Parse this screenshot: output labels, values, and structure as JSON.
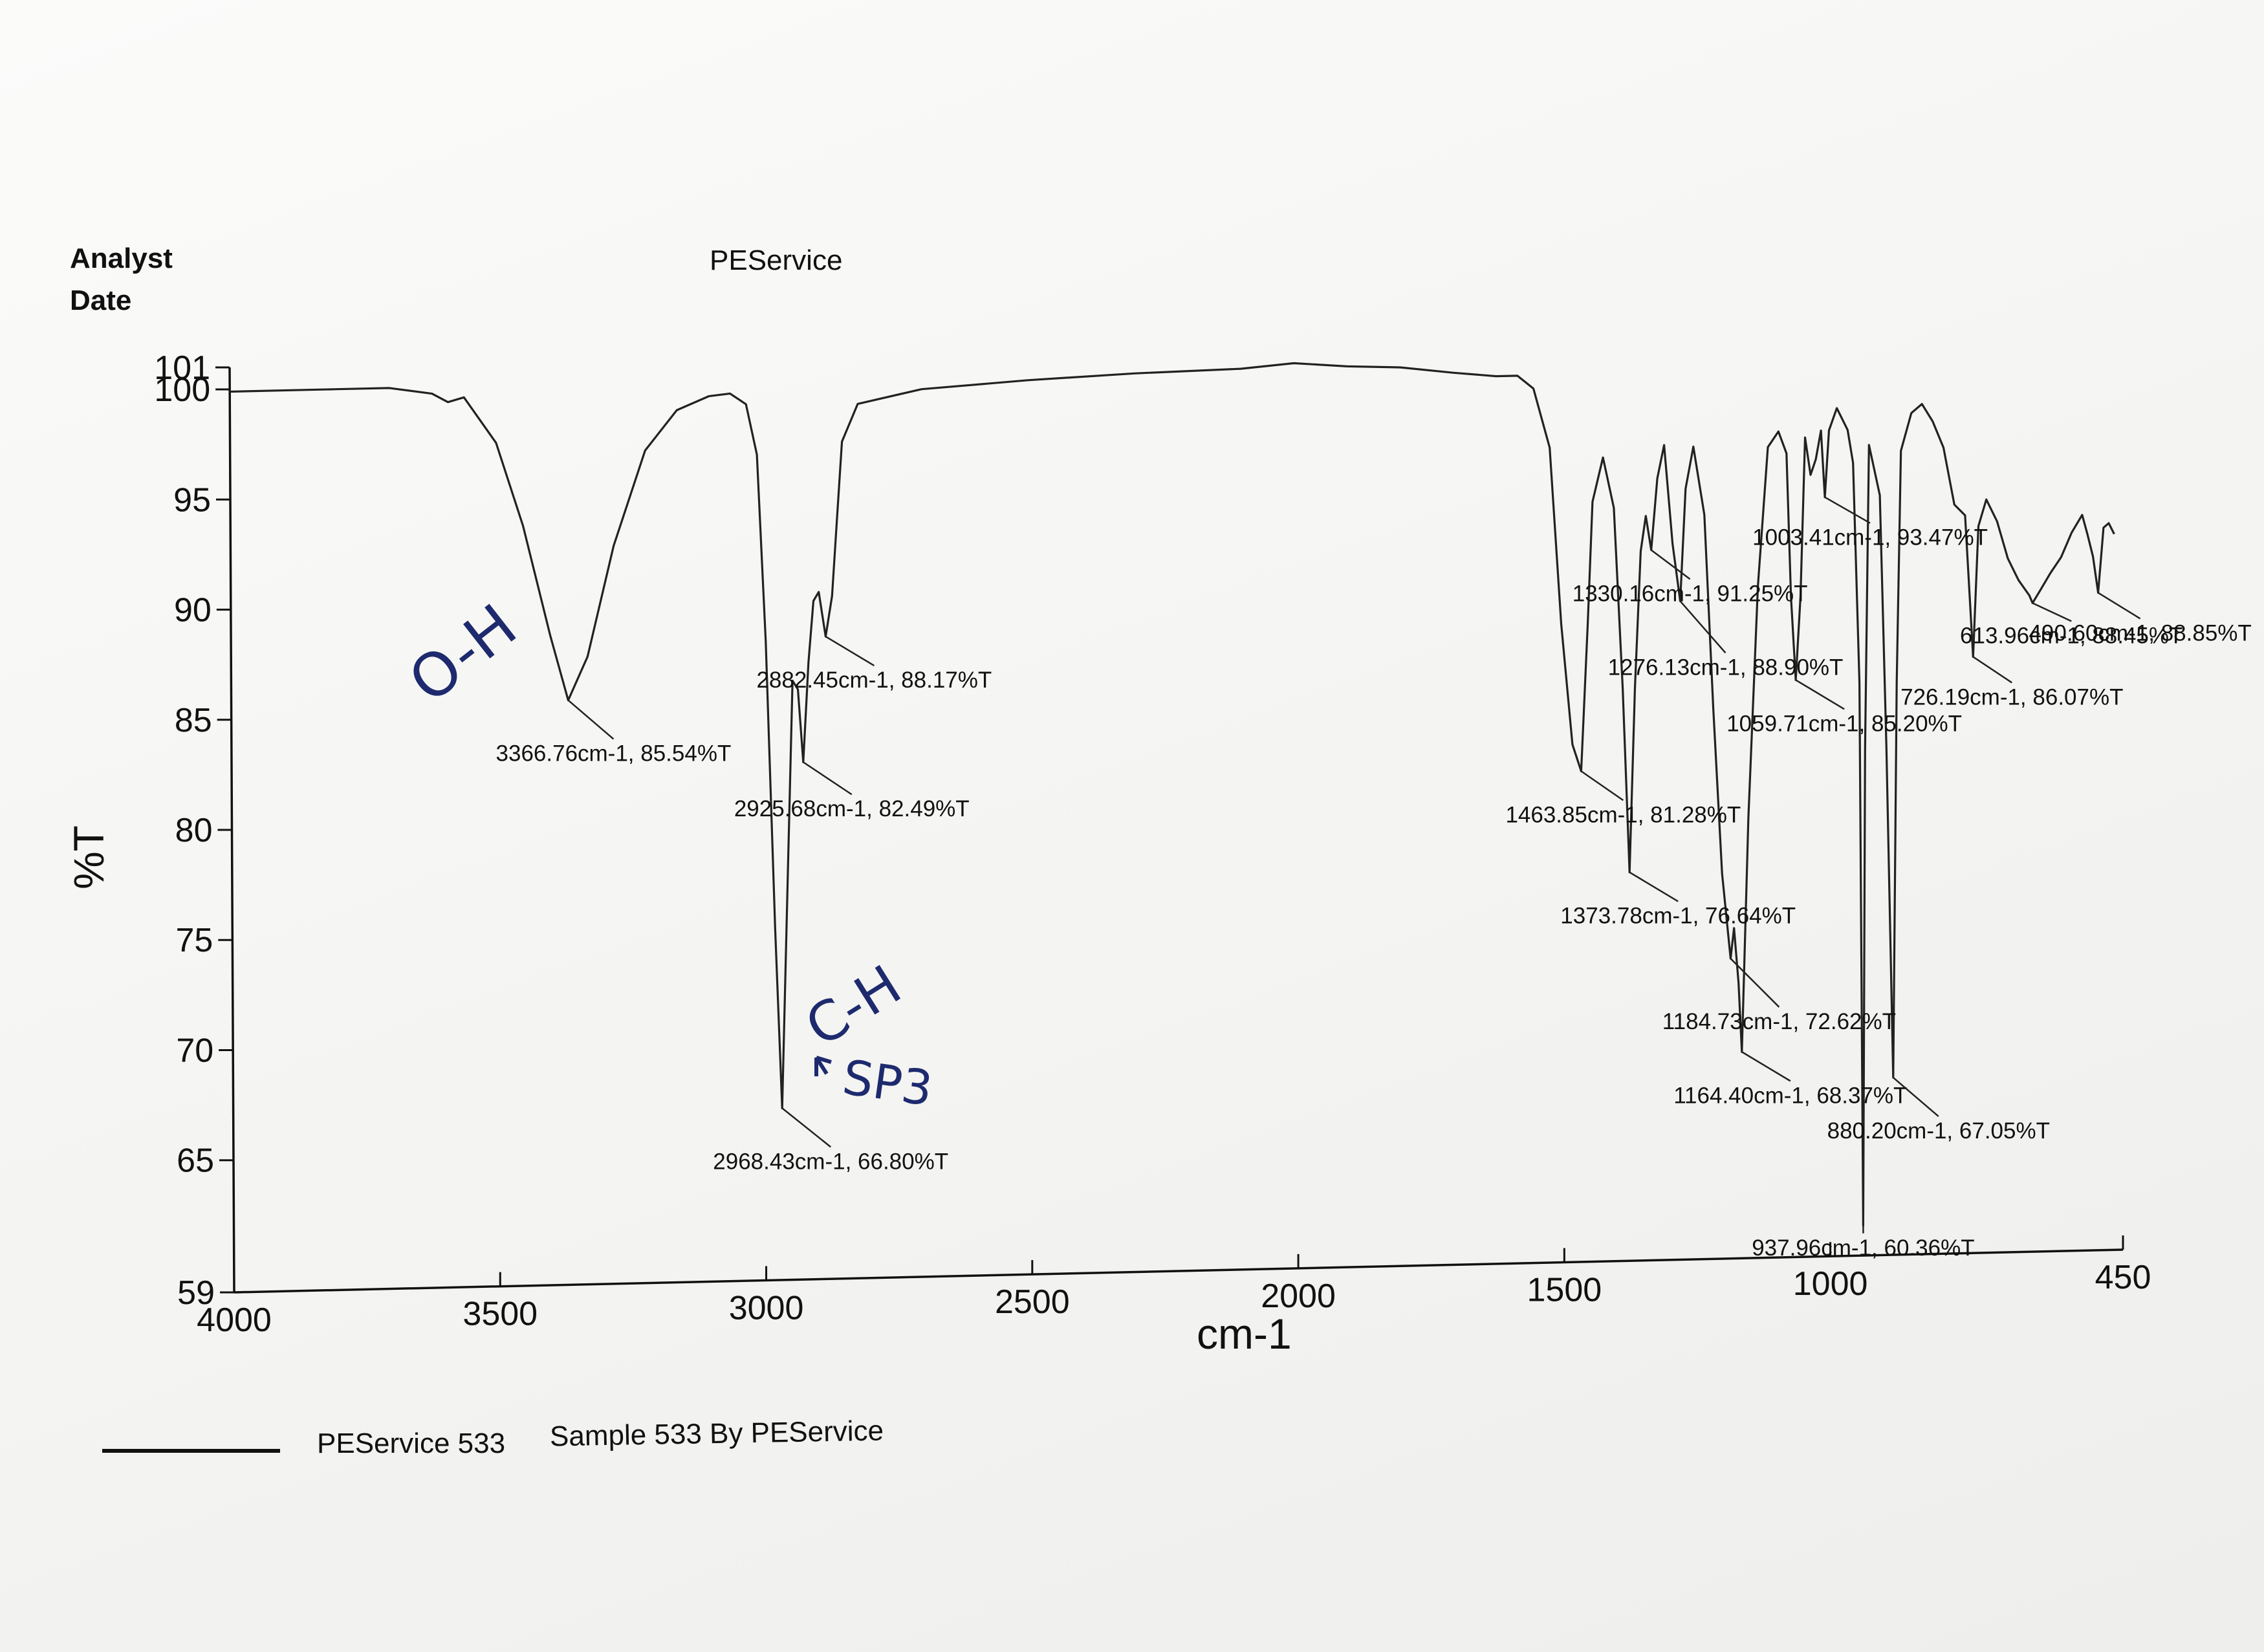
{
  "header": {
    "analyst_label": "Analyst",
    "date_label": "Date",
    "title": "PEService"
  },
  "legend": {
    "series_name": "PEService 533",
    "description": "Sample 533 By PEService"
  },
  "handwritten": {
    "oh": "O-H",
    "ch": "C-H",
    "sp3": "SP3"
  },
  "chart_data": {
    "type": "line",
    "title": "PEService",
    "xlabel": "cm-1",
    "ylabel": "%T",
    "xlim": [
      4000,
      450
    ],
    "ylim": [
      59,
      101
    ],
    "x_ticks": [
      4000,
      3500,
      3000,
      2500,
      2000,
      1500,
      1000,
      450
    ],
    "y_ticks": [
      59,
      65,
      70,
      75,
      80,
      85,
      90,
      95,
      100,
      101
    ],
    "grid": false,
    "series": [
      {
        "name": "PEService 533",
        "x": [
          4000,
          3800,
          3700,
          3620,
          3590,
          3560,
          3500,
          3450,
          3400,
          3366.76,
          3330,
          3280,
          3220,
          3160,
          3100,
          3060,
          3030,
          3010,
          2995,
          2980,
          2968.43,
          2955,
          2945,
          2935,
          2925.68,
          2915,
          2905,
          2895,
          2882.45,
          2870,
          2860,
          2850,
          2820,
          2700,
          2500,
          2300,
          2100,
          2000,
          1900,
          1800,
          1700,
          1620,
          1580,
          1550,
          1520,
          1500,
          1480,
          1463.85,
          1450,
          1440,
          1420,
          1400,
          1385,
          1373.78,
          1362,
          1350,
          1340,
          1330.16,
          1318,
          1305,
          1290,
          1276.13,
          1265,
          1250,
          1230,
          1215,
          1200,
          1184.73,
          1178,
          1170,
          1164.4,
          1150,
          1130,
          1110,
          1090,
          1075,
          1068,
          1059.71,
          1050,
          1040,
          1030,
          1020,
          1010,
          1003.41,
          995,
          980,
          960,
          950,
          940,
          937.96,
          930,
          920,
          900,
          890,
          880.2,
          870,
          860,
          840,
          820,
          800,
          780,
          760,
          740,
          726.19,
          715,
          700,
          680,
          660,
          640,
          620,
          613.96,
          600,
          580,
          560,
          540,
          520,
          510,
          500,
          490.6,
          480,
          470,
          460
        ],
        "y": [
          99.9,
          99.9,
          99.9,
          99.6,
          99.2,
          99.4,
          97.3,
          93.5,
          88.5,
          85.54,
          87.5,
          92.5,
          96.8,
          98.6,
          99.2,
          99.3,
          98.8,
          96.5,
          88,
          75,
          66.8,
          78,
          86.2,
          85.8,
          82.49,
          87,
          89.8,
          90.2,
          88.17,
          90,
          93.5,
          97,
          98.7,
          99.3,
          99.6,
          99.8,
          99.9,
          100.1,
          99.9,
          99.8,
          99.5,
          99.3,
          99.3,
          98.7,
          96,
          88,
          82.5,
          81.28,
          88,
          93.5,
          95.5,
          93.2,
          85,
          76.64,
          85,
          91.2,
          92.8,
          91.25,
          94.5,
          96,
          91.5,
          88.9,
          94,
          95.9,
          92.8,
          84,
          76.5,
          72.62,
          74,
          71.5,
          68.37,
          79,
          89.5,
          95.8,
          96.5,
          95.5,
          89,
          85.2,
          89,
          96.2,
          94.5,
          95.2,
          96.5,
          93.47,
          96.5,
          97.5,
          96.5,
          95,
          85,
          60.36,
          82,
          95.8,
          93.5,
          82,
          67.05,
          85,
          95.5,
          97.2,
          97.6,
          96.8,
          95.6,
          93,
          92.5,
          86.07,
          92,
          93.2,
          92.2,
          90.5,
          89.5,
          88.8,
          88.45,
          89,
          89.8,
          90.5,
          91.6,
          92.4,
          91.5,
          90.5,
          88.85,
          91.8,
          92,
          91.5
        ]
      }
    ],
    "peak_labels": [
      "3366.76cm-1, 85.54%T",
      "2968.43cm-1, 66.80%T",
      "2925.68cm-1, 82.49%T",
      "2882.45cm-1, 88.17%T",
      "1463.85cm-1, 81.28%T",
      "1373.78cm-1, 76.64%T",
      "1330.16cm-1, 91.25%T",
      "1276.13cm-1, 88.90%T",
      "1184.73cm-1, 72.62%T",
      "1164.40cm-1, 68.37%T",
      "1059.71cm-1, 85.20%T",
      "1003.41cm-1, 93.47%T",
      "937.96cm-1, 60.36%T",
      "880.20cm-1, 67.05%T",
      "726.19cm-1, 86.07%T",
      "613.96cm-1, 88.45%T",
      "490.60cm-1, 88.85%T"
    ]
  }
}
